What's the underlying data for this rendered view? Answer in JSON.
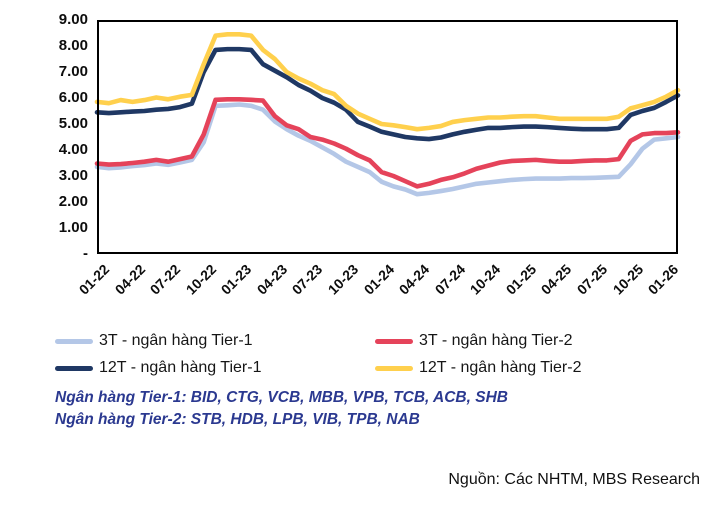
{
  "chart_data": {
    "type": "line",
    "title": "",
    "grid": false,
    "legend_position": "bottom",
    "y_axis": {
      "min": 0,
      "max": 9,
      "tick_values": [
        9,
        8,
        7,
        6,
        5,
        4,
        3,
        2,
        1,
        0
      ],
      "tick_labels": [
        "9.00",
        "8.00",
        "7.00",
        "6.00",
        "5.00",
        "4.00",
        "3.00",
        "2.00",
        "1.00",
        "-"
      ]
    },
    "x_tick_every": 3,
    "categories": [
      "01-22",
      "02-22",
      "03-22",
      "04-22",
      "05-22",
      "06-22",
      "07-22",
      "08-22",
      "09-22",
      "10-22",
      "11-22",
      "12-22",
      "01-23",
      "02-23",
      "03-23",
      "04-23",
      "05-23",
      "06-23",
      "07-23",
      "08-23",
      "09-23",
      "10-23",
      "11-23",
      "12-23",
      "01-24",
      "02-24",
      "03-24",
      "04-24",
      "05-24",
      "06-24",
      "07-24",
      "08-24",
      "09-24",
      "10-24",
      "11-24",
      "12-24",
      "01-25",
      "02-25",
      "03-25",
      "04-25",
      "05-25",
      "06-25",
      "07-25",
      "08-25",
      "09-25",
      "10-25",
      "11-25",
      "12-25",
      "01-26",
      "02-26"
    ],
    "series": [
      {
        "name": "3T - ngân hàng Tier-1",
        "color": "#B4C7E7",
        "values": [
          3.35,
          3.3,
          3.33,
          3.38,
          3.42,
          3.48,
          3.43,
          3.52,
          3.62,
          4.3,
          5.7,
          5.72,
          5.75,
          5.7,
          5.55,
          5.1,
          4.8,
          4.55,
          4.35,
          4.1,
          3.85,
          3.55,
          3.35,
          3.15,
          2.78,
          2.6,
          2.48,
          2.3,
          2.35,
          2.42,
          2.5,
          2.6,
          2.7,
          2.75,
          2.8,
          2.85,
          2.88,
          2.9,
          2.9,
          2.9,
          2.92,
          2.92,
          2.93,
          2.95,
          2.97,
          3.45,
          4.05,
          4.4,
          4.45,
          4.5
        ]
      },
      {
        "name": "3T - ngân hàng Tier-2",
        "color": "#E5435A",
        "values": [
          3.48,
          3.44,
          3.46,
          3.5,
          3.55,
          3.62,
          3.55,
          3.65,
          3.75,
          4.6,
          5.93,
          5.95,
          5.95,
          5.93,
          5.9,
          5.3,
          4.95,
          4.8,
          4.5,
          4.4,
          4.25,
          4.05,
          3.8,
          3.6,
          3.15,
          3.0,
          2.8,
          2.6,
          2.7,
          2.85,
          2.95,
          3.1,
          3.28,
          3.4,
          3.52,
          3.58,
          3.6,
          3.62,
          3.58,
          3.55,
          3.55,
          3.58,
          3.6,
          3.6,
          3.65,
          4.35,
          4.6,
          4.65,
          4.65,
          4.68
        ]
      },
      {
        "name": "12T - ngân hàng Tier-1",
        "color": "#1F3864",
        "values": [
          5.45,
          5.42,
          5.45,
          5.48,
          5.5,
          5.55,
          5.58,
          5.65,
          5.78,
          7.0,
          7.85,
          7.88,
          7.88,
          7.85,
          7.3,
          7.05,
          6.8,
          6.5,
          6.28,
          6.0,
          5.82,
          5.55,
          5.08,
          4.9,
          4.7,
          4.6,
          4.5,
          4.45,
          4.42,
          4.48,
          4.6,
          4.7,
          4.78,
          4.85,
          4.85,
          4.88,
          4.9,
          4.9,
          4.88,
          4.85,
          4.82,
          4.8,
          4.8,
          4.8,
          4.85,
          5.35,
          5.5,
          5.62,
          5.85,
          6.1
        ]
      },
      {
        "name": "12T - ngân hàng Tier-2",
        "color": "#FFD04D",
        "values": [
          5.85,
          5.8,
          5.92,
          5.85,
          5.92,
          6.02,
          5.95,
          6.05,
          6.12,
          7.3,
          8.4,
          8.45,
          8.45,
          8.4,
          7.85,
          7.5,
          7.0,
          6.75,
          6.55,
          6.3,
          6.15,
          5.7,
          5.4,
          5.2,
          5.0,
          4.95,
          4.88,
          4.8,
          4.85,
          4.92,
          5.08,
          5.15,
          5.2,
          5.25,
          5.25,
          5.28,
          5.3,
          5.3,
          5.25,
          5.2,
          5.2,
          5.2,
          5.2,
          5.2,
          5.28,
          5.6,
          5.72,
          5.85,
          6.05,
          6.3
        ]
      }
    ]
  },
  "notes": {
    "tier1": "Ngân hàng Tier-1: BID, CTG, VCB, MBB, VPB, TCB, ACB, SHB",
    "tier2": "Ngân hàng Tier-2: STB, HDB, LPB, VIB, TPB, NAB"
  },
  "source": {
    "text": "Nguồn: Các NHTM, MBS Research"
  }
}
